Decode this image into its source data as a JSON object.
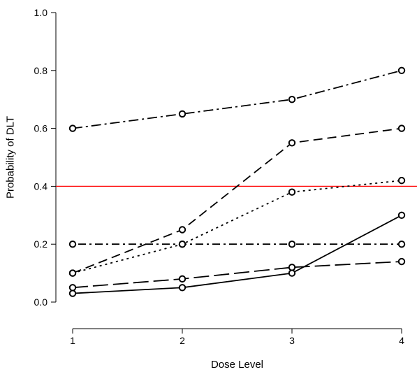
{
  "chart_data": {
    "type": "line",
    "title": "",
    "xlabel": "Dose Level",
    "ylabel": "Probability of DLT",
    "x": [
      1,
      2,
      3,
      4
    ],
    "x_ticks": [
      "1",
      "2",
      "3",
      "4"
    ],
    "y_ticks": [
      "0.0",
      "0.2",
      "0.4",
      "0.6",
      "0.8",
      "1.0"
    ],
    "xlim": [
      1,
      4
    ],
    "ylim": [
      0,
      1
    ],
    "grid": false,
    "legend": "none",
    "reference_line": {
      "y": 0.4,
      "color": "#ff0000"
    },
    "series": [
      {
        "values": [
          0.03,
          0.05,
          0.1,
          0.3
        ],
        "line_style": "solid"
      },
      {
        "values": [
          0.05,
          0.08,
          0.12,
          0.14
        ],
        "line_style": "long-dash"
      },
      {
        "values": [
          0.1,
          0.2,
          0.38,
          0.42
        ],
        "line_style": "dotted"
      },
      {
        "values": [
          0.1,
          0.25,
          0.55,
          0.6
        ],
        "line_style": "dashed"
      },
      {
        "values": [
          0.2,
          0.2,
          0.2,
          0.2
        ],
        "line_style": "dot-dash"
      },
      {
        "values": [
          0.6,
          0.65,
          0.7,
          0.8
        ],
        "line_style": "long-dash-dot"
      }
    ]
  }
}
